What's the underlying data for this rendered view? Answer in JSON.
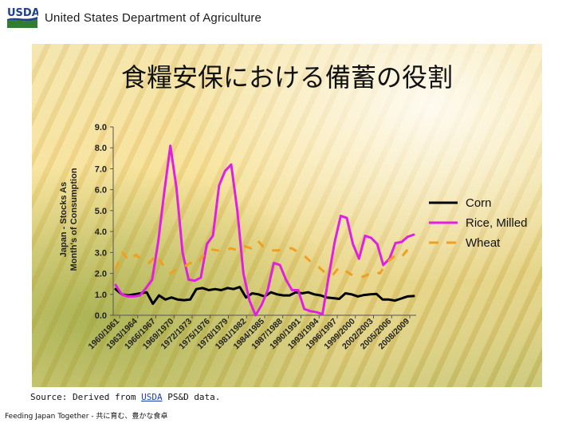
{
  "header": {
    "logo_text": "USDA",
    "org_name": "United States Department of Agriculture",
    "logo_colors": {
      "blue": "#1f3f8f",
      "green": "#2e7d32"
    }
  },
  "slide": {
    "title": "食糧安保における備蓄の役割",
    "source_prefix": "Source: Derived from ",
    "source_link": "USDA",
    "source_suffix": " PS&D data.",
    "footer": "Feeding Japan Together - 共に育む、豊かな食卓"
  },
  "chart_data": {
    "type": "line",
    "ylabel_lines": [
      "Japan - Stocks As",
      "Month's of Consumption"
    ],
    "ylim": [
      0,
      9
    ],
    "yticks": [
      "0.0",
      "1.0",
      "2.0",
      "3.0",
      "4.0",
      "5.0",
      "6.0",
      "7.0",
      "8.0",
      "9.0"
    ],
    "xtick_labels": [
      "1960/1961",
      "1963/1964",
      "1966/1967",
      "1969/1970",
      "1972/1973",
      "1975/1976",
      "1978/1979",
      "1981/1982",
      "1984/1985",
      "1987/1988",
      "1990/1991",
      "1993/1994",
      "1996/1997",
      "1999/2000",
      "2002/2003",
      "2005/2006",
      "2008/2009"
    ],
    "legend_position": "right",
    "series": [
      {
        "name": "Corn",
        "color": "#000000",
        "style": "solid",
        "values": [
          1.25,
          1.0,
          0.95,
          1.0,
          1.05,
          1.1,
          0.55,
          0.95,
          0.75,
          0.85,
          0.75,
          0.72,
          0.75,
          1.25,
          1.3,
          1.2,
          1.25,
          1.2,
          1.3,
          1.25,
          1.35,
          0.85,
          1.05,
          1.0,
          0.9,
          1.1,
          1.0,
          0.95,
          0.95,
          1.1,
          1.05,
          1.1,
          1.0,
          0.95,
          0.85,
          0.82,
          0.78,
          1.05,
          1.0,
          0.9,
          0.97,
          1.0,
          1.02,
          0.75,
          0.75,
          0.7,
          0.8,
          0.9,
          0.92
        ]
      },
      {
        "name": "Rice, Milled",
        "color": "#e020e0",
        "style": "solid",
        "values": [
          1.45,
          1.0,
          0.9,
          0.9,
          0.95,
          1.3,
          1.7,
          3.5,
          5.9,
          8.1,
          6.1,
          3.0,
          1.7,
          1.65,
          1.8,
          3.4,
          3.8,
          6.2,
          6.9,
          7.2,
          5.0,
          2.0,
          0.7,
          0.0,
          0.5,
          1.2,
          2.5,
          2.4,
          1.7,
          1.2,
          1.2,
          0.3,
          0.2,
          0.15,
          0.05,
          1.8,
          3.5,
          4.75,
          4.65,
          3.4,
          2.7,
          3.8,
          3.7,
          3.4,
          2.4,
          2.7,
          3.45,
          3.5,
          3.75,
          3.85
        ]
      },
      {
        "name": "Wheat",
        "color": "#f0a020",
        "style": "dashed",
        "values": [
          2.2,
          3.0,
          2.6,
          2.9,
          2.6,
          2.5,
          2.9,
          2.4,
          2.0,
          2.2,
          2.3,
          2.5,
          2.4,
          2.9,
          3.15,
          3.1,
          3.05,
          3.2,
          3.1,
          3.3,
          3.2,
          3.55,
          3.2,
          3.1,
          3.1,
          3.2,
          3.2,
          3.0,
          2.8,
          2.5,
          2.3,
          2.0,
          1.9,
          2.3,
          2.1,
          1.9,
          1.8,
          1.9,
          2.1,
          2.0,
          2.5,
          2.8,
          2.7,
          3.1,
          3.3
        ]
      }
    ]
  }
}
